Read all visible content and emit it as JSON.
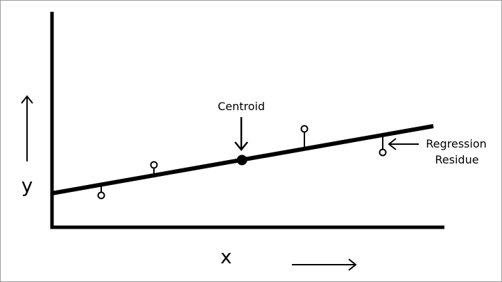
{
  "figure": {
    "x_axis_label": "x",
    "y_axis_label": "y",
    "centroid_label": "Centroid",
    "residue_label_line1": "Regression",
    "residue_label_line2": "Residue",
    "line_color": "#000000",
    "background_color": "#ffffff"
  },
  "icons": {
    "y_arrow": "arrow-up-icon",
    "x_arrow": "arrow-right-icon",
    "centroid_arrow": "arrow-down-icon",
    "residue_arrow": "arrow-left-icon"
  }
}
